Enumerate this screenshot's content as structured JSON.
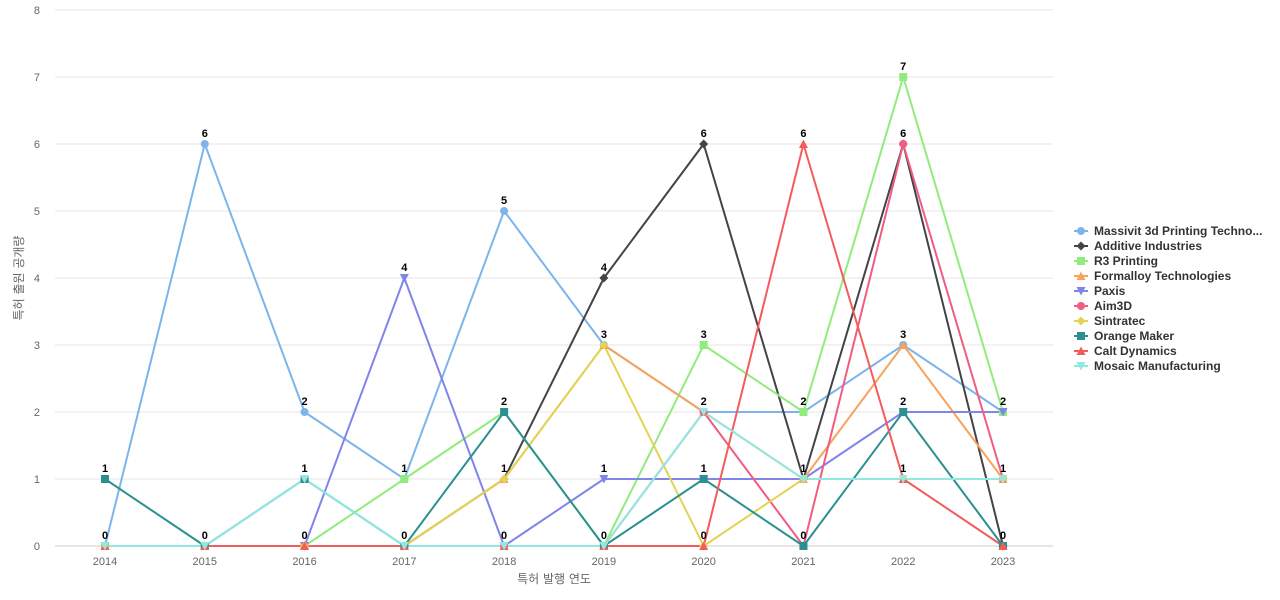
{
  "chart_data": {
    "type": "line",
    "title": "",
    "xlabel": "특허 발행 연도",
    "ylabel": "특허 출원 공개량",
    "ylim": [
      0,
      8
    ],
    "yticks": [
      0,
      1,
      2,
      3,
      4,
      5,
      6,
      7,
      8
    ],
    "grid": true,
    "legend_position": "right",
    "categories": [
      "2014",
      "2015",
      "2016",
      "2017",
      "2018",
      "2019",
      "2020",
      "2021",
      "2022",
      "2023"
    ],
    "series": [
      {
        "name": "Massivit 3d Printing Techno...",
        "color": "#7cb5ec",
        "marker": "circle",
        "values": [
          0,
          6,
          2,
          1,
          5,
          3,
          2,
          2,
          3,
          2
        ]
      },
      {
        "name": "Additive Industries",
        "color": "#434348",
        "marker": "diamond",
        "values": [
          0,
          0,
          0,
          0,
          1,
          4,
          6,
          1,
          6,
          0
        ]
      },
      {
        "name": "R3 Printing",
        "color": "#90ed7d",
        "marker": "square",
        "values": [
          0,
          0,
          0,
          1,
          2,
          0,
          3,
          2,
          7,
          2
        ]
      },
      {
        "name": "Formalloy Technologies",
        "color": "#f7a35c",
        "marker": "triangle",
        "values": [
          0,
          0,
          0,
          0,
          1,
          3,
          2,
          1,
          3,
          1
        ]
      },
      {
        "name": "Paxis",
        "color": "#8085e9",
        "marker": "triangle-down",
        "values": [
          0,
          0,
          0,
          4,
          0,
          1,
          1,
          1,
          2,
          2
        ]
      },
      {
        "name": "Aim3D",
        "color": "#f15c80",
        "marker": "circle",
        "values": [
          0,
          0,
          0,
          0,
          0,
          0,
          2,
          0,
          6,
          1
        ]
      },
      {
        "name": "Sintratec",
        "color": "#e4d354",
        "marker": "diamond",
        "values": [
          0,
          0,
          0,
          0,
          1,
          3,
          0,
          1,
          1,
          1
        ]
      },
      {
        "name": "Orange Maker",
        "color": "#2b908f",
        "marker": "square",
        "values": [
          1,
          0,
          1,
          0,
          2,
          0,
          1,
          0,
          2,
          0
        ]
      },
      {
        "name": "Calt Dynamics",
        "color": "#f45b5b",
        "marker": "triangle",
        "values": [
          0,
          0,
          0,
          0,
          0,
          0,
          0,
          6,
          1,
          0
        ]
      },
      {
        "name": "Mosaic Manufacturing",
        "color": "#91e8e1",
        "marker": "triangle-down",
        "values": [
          0,
          0,
          1,
          0,
          0,
          0,
          2,
          1,
          1,
          1
        ]
      }
    ],
    "point_labels": [
      {
        "category": "2014",
        "text": "1",
        "value": 1
      },
      {
        "category": "2014",
        "text": "0",
        "value": 0
      },
      {
        "category": "2015",
        "text": "6",
        "value": 6
      },
      {
        "category": "2015",
        "text": "0",
        "value": 0
      },
      {
        "category": "2016",
        "text": "2",
        "value": 2
      },
      {
        "category": "2016",
        "text": "1",
        "value": 1
      },
      {
        "category": "2016",
        "text": "0",
        "value": 0
      },
      {
        "category": "2017",
        "text": "4",
        "value": 4
      },
      {
        "category": "2017",
        "text": "1",
        "value": 1
      },
      {
        "category": "2017",
        "text": "0",
        "value": 0
      },
      {
        "category": "2018",
        "text": "5",
        "value": 5
      },
      {
        "category": "2018",
        "text": "2",
        "value": 2
      },
      {
        "category": "2018",
        "text": "1",
        "value": 1
      },
      {
        "category": "2018",
        "text": "0",
        "value": 0
      },
      {
        "category": "2019",
        "text": "4",
        "value": 4
      },
      {
        "category": "2019",
        "text": "3",
        "value": 3
      },
      {
        "category": "2019",
        "text": "1",
        "value": 1
      },
      {
        "category": "2019",
        "text": "0",
        "value": 0
      },
      {
        "category": "2020",
        "text": "6",
        "value": 6
      },
      {
        "category": "2020",
        "text": "3",
        "value": 3
      },
      {
        "category": "2020",
        "text": "2",
        "value": 2
      },
      {
        "category": "2020",
        "text": "1",
        "value": 1
      },
      {
        "category": "2020",
        "text": "0",
        "value": 0
      },
      {
        "category": "2021",
        "text": "6",
        "value": 6
      },
      {
        "category": "2021",
        "text": "2",
        "value": 2
      },
      {
        "category": "2021",
        "text": "1",
        "value": 1
      },
      {
        "category": "2021",
        "text": "0",
        "value": 0
      },
      {
        "category": "2022",
        "text": "7",
        "value": 7
      },
      {
        "category": "2022",
        "text": "6",
        "value": 6
      },
      {
        "category": "2022",
        "text": "3",
        "value": 3
      },
      {
        "category": "2022",
        "text": "2",
        "value": 2
      },
      {
        "category": "2022",
        "text": "1",
        "value": 1
      },
      {
        "category": "2023",
        "text": "2",
        "value": 2
      },
      {
        "category": "2023",
        "text": "1",
        "value": 1
      },
      {
        "category": "2023",
        "text": "0",
        "value": 0
      }
    ]
  }
}
